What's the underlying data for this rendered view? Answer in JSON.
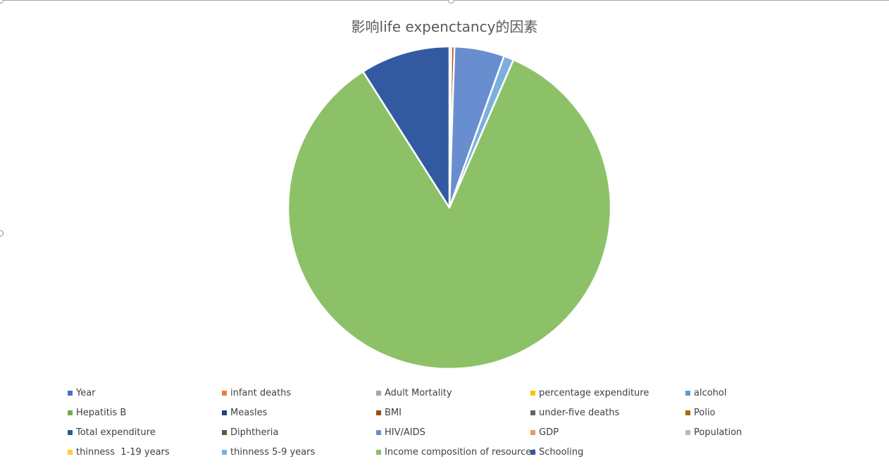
{
  "chart_data": {
    "type": "pie",
    "title": "影响life expenctancy的因素",
    "legend_position": "bottom",
    "slices": [
      {
        "name": "Year",
        "value": 0.0,
        "color": "#4472c4"
      },
      {
        "name": "infant deaths",
        "value": 0.2,
        "color": "#ed7d31"
      },
      {
        "name": "Adult Mortality",
        "value": 0.0,
        "color": "#a5a5a5"
      },
      {
        "name": "percentage expenditure",
        "value": 0.0,
        "color": "#ffc000"
      },
      {
        "name": "alcohol",
        "value": 0.0,
        "color": "#5b9bd5"
      },
      {
        "name": "Hepatitis B",
        "value": 0.0,
        "color": "#70ad47"
      },
      {
        "name": "Measles",
        "value": 0.0,
        "color": "#264478"
      },
      {
        "name": "BMI",
        "value": 0.3,
        "color": "#9e480e"
      },
      {
        "name": "under-five deaths",
        "value": 0.0,
        "color": "#636363"
      },
      {
        "name": "Polio",
        "value": 0.0,
        "color": "#997300"
      },
      {
        "name": "Total expenditure",
        "value": 0.0,
        "color": "#255e91"
      },
      {
        "name": "Diphtheria",
        "value": 0.0,
        "color": "#43682b"
      },
      {
        "name": "HIV/AIDS",
        "value": 5.0,
        "color": "#698ed0"
      },
      {
        "name": "GDP",
        "value": 0.0,
        "color": "#f1975a"
      },
      {
        "name": "Population",
        "value": 0.0,
        "color": "#b7b7b7"
      },
      {
        "name": "thinness  1-19 years",
        "value": 0.0,
        "color": "#ffcd33"
      },
      {
        "name": "thinness 5-9 years",
        "value": 1.0,
        "color": "#7cafdd"
      },
      {
        "name": "Income composition of resources",
        "value": 84.5,
        "color": "#8cc168"
      },
      {
        "name": "Schooling",
        "value": 9.0,
        "color": "#335aa1"
      }
    ]
  }
}
